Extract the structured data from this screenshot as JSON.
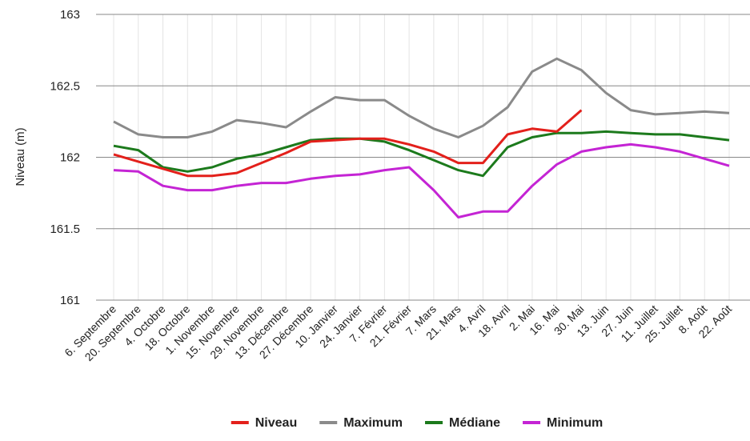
{
  "chart_data": {
    "type": "line",
    "y_label": "Niveau (m)",
    "categories": [
      "6. Septembre",
      "20. Septembre",
      "4. Octobre",
      "18. Octobre",
      "1. Novembre",
      "15. Novembre",
      "29. Novembre",
      "13. Décembre",
      "27. Décembre",
      "10. Janvier",
      "24. Janvier",
      "7. Février",
      "21. Février",
      "7. Mars",
      "21. Mars",
      "4. Avril",
      "18. Avril",
      "2. Mai",
      "16. Mai",
      "30. Mai",
      "13. Juin",
      "27. Juin",
      "11. Juillet",
      "25. Juillet",
      "8. Août",
      "22. Août"
    ],
    "series": [
      {
        "name": "Niveau",
        "color": "#e3201b",
        "values": [
          162.02,
          161.97,
          161.92,
          161.87,
          161.87,
          161.89,
          161.96,
          162.03,
          162.11,
          162.12,
          162.13,
          162.13,
          162.09,
          162.04,
          161.96,
          161.96,
          162.16,
          162.2,
          162.18,
          162.33,
          null,
          null,
          null,
          null,
          null,
          null
        ]
      },
      {
        "name": "Maximum",
        "color": "#8a8a8a",
        "values": [
          162.25,
          162.16,
          162.14,
          162.14,
          162.18,
          162.26,
          162.24,
          162.21,
          162.32,
          162.42,
          162.4,
          162.4,
          162.29,
          162.2,
          162.14,
          162.22,
          162.35,
          162.6,
          162.69,
          162.61,
          162.45,
          162.33,
          162.3,
          162.31,
          162.32,
          162.31
        ]
      },
      {
        "name": "Médiane",
        "color": "#1c7a1c",
        "values": [
          162.08,
          162.05,
          161.93,
          161.9,
          161.93,
          161.99,
          162.02,
          162.07,
          162.12,
          162.13,
          162.13,
          162.11,
          162.05,
          161.98,
          161.91,
          161.87,
          162.07,
          162.14,
          162.17,
          162.17,
          162.18,
          162.17,
          162.16,
          162.16,
          162.14,
          162.12
        ]
      },
      {
        "name": "Minimum",
        "color": "#c424d4",
        "values": [
          161.91,
          161.9,
          161.8,
          161.77,
          161.77,
          161.8,
          161.82,
          161.82,
          161.85,
          161.87,
          161.88,
          161.91,
          161.93,
          161.77,
          161.58,
          161.62,
          161.62,
          161.8,
          161.95,
          162.04,
          162.07,
          162.09,
          162.07,
          162.04,
          161.99,
          161.94
        ]
      }
    ],
    "ylim": [
      161,
      163
    ],
    "yticks": [
      161,
      161.5,
      162,
      162.5,
      163
    ],
    "grid": true
  }
}
